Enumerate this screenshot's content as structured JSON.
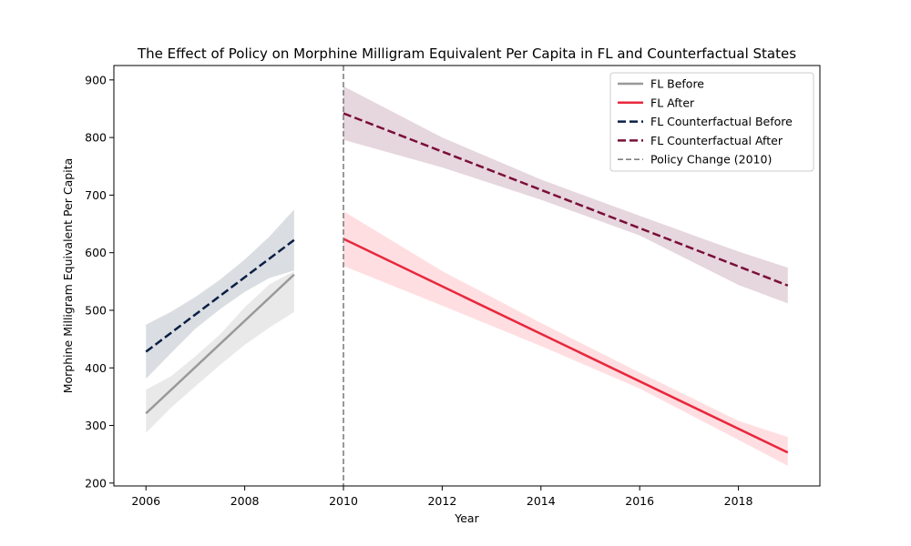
{
  "chart_data": {
    "type": "line",
    "title": "The Effect of Policy on Morphine Milligram Equivalent Per Capita in FL and Counterfactual States",
    "xlabel": "Year",
    "ylabel": "Morphine Milligram Equivalent Per Capita",
    "xlim": [
      2005.35,
      2019.65
    ],
    "ylim": [
      195,
      925
    ],
    "x_ticks": [
      2006,
      2008,
      2010,
      2012,
      2014,
      2016,
      2018
    ],
    "y_ticks": [
      200,
      300,
      400,
      500,
      600,
      700,
      800,
      900
    ],
    "grid": false,
    "legend_position": "top-right",
    "series": [
      {
        "name": "FL Before",
        "style": "solid",
        "color": "#999999",
        "band_color": "#999999",
        "x": [
          2006,
          2009
        ],
        "values": [
          321,
          562
        ],
        "band_x": [
          2006,
          2006.5,
          2007,
          2007.5,
          2008,
          2008.5,
          2009
        ],
        "band_upper": [
          362,
          385,
          420,
          458,
          505,
          545,
          568
        ],
        "band_lower": [
          287,
          330,
          368,
          405,
          440,
          470,
          497
        ]
      },
      {
        "name": "FL After",
        "style": "solid",
        "color": "#e8283c",
        "band_color": "#ff6b7a",
        "x": [
          2010,
          2019
        ],
        "values": [
          624,
          253
        ],
        "band_x": [
          2010,
          2012,
          2014,
          2016,
          2018,
          2019
        ],
        "band_upper": [
          672,
          568,
          478,
          392,
          308,
          280
        ],
        "band_lower": [
          577,
          508,
          438,
          364,
          275,
          230
        ]
      },
      {
        "name": "FL Counterfactual Before",
        "style": "dashed",
        "color": "#0a1f44",
        "band_color": "#566377",
        "x": [
          2006,
          2009
        ],
        "values": [
          428,
          622
        ],
        "band_x": [
          2006,
          2006.5,
          2007,
          2007.5,
          2008,
          2008.5,
          2009
        ],
        "band_upper": [
          475,
          497,
          523,
          553,
          588,
          628,
          675
        ],
        "band_lower": [
          381,
          425,
          468,
          502,
          532,
          556,
          569
        ]
      },
      {
        "name": "FL Counterfactual After",
        "style": "dashed",
        "color": "#7a0f38",
        "band_color": "#8e4463",
        "x": [
          2010,
          2019
        ],
        "values": [
          842,
          543
        ],
        "band_x": [
          2010,
          2012,
          2014,
          2016,
          2018,
          2019
        ],
        "band_upper": [
          889,
          800,
          727,
          664,
          602,
          574
        ],
        "band_lower": [
          796,
          748,
          692,
          630,
          544,
          512
        ]
      }
    ],
    "vline": {
      "name": "Policy Change (2010)",
      "x": 2010,
      "color": "#808080",
      "style": "dashed"
    }
  }
}
